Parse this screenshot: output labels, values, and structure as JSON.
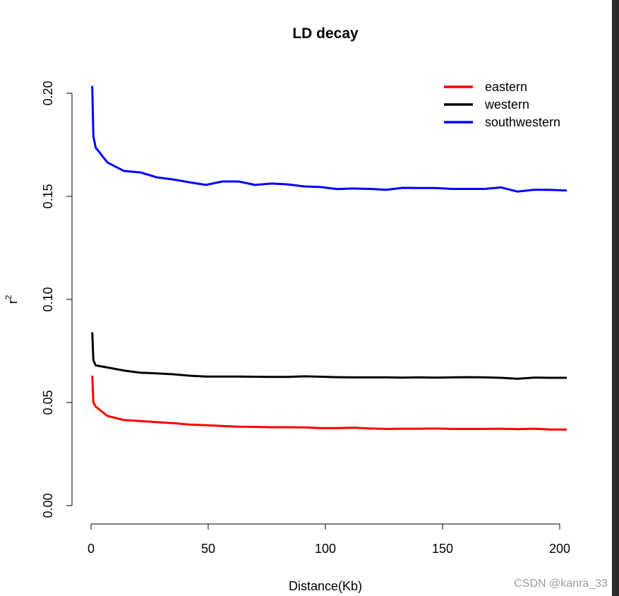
{
  "chart_data": {
    "type": "line",
    "title": "LD decay",
    "xlabel": "Distance(Kb)",
    "ylabel": "r",
    "ylabel_superscript": "2",
    "xlim": [
      0,
      203
    ],
    "ylim": [
      0,
      0.2
    ],
    "xticks": [
      0,
      50,
      100,
      150,
      200
    ],
    "xtick_labels": [
      "0",
      "50",
      "100",
      "150",
      "200"
    ],
    "yticks": [
      0,
      0.05,
      0.1,
      0.15,
      0.2
    ],
    "ytick_labels": [
      "0.00",
      "0.05",
      "0.10",
      "0.15",
      "0.20"
    ],
    "grid": false,
    "legend_position": "top-right",
    "x": [
      0.5,
      1,
      2,
      7,
      14,
      21,
      28,
      35,
      42,
      49,
      56,
      63,
      70,
      77,
      84,
      91,
      98,
      105,
      112,
      119,
      126,
      133,
      140,
      147,
      154,
      161,
      168,
      175,
      182,
      189,
      196,
      203
    ],
    "series": [
      {
        "name": "eastern",
        "color": "#ff0000",
        "values": [
          0.063,
          0.05,
          0.048,
          0.0435,
          0.0415,
          0.041,
          0.0405,
          0.04,
          0.0393,
          0.039,
          0.0386,
          0.0383,
          0.0382,
          0.038,
          0.038,
          0.0379,
          0.0376,
          0.0376,
          0.0378,
          0.0374,
          0.0372,
          0.0373,
          0.0373,
          0.0374,
          0.0372,
          0.0372,
          0.0372,
          0.0373,
          0.0371,
          0.0373,
          0.0369,
          0.0369
        ]
      },
      {
        "name": "western",
        "color": "#000000",
        "values": [
          0.084,
          0.0705,
          0.068,
          0.067,
          0.0655,
          0.0645,
          0.0641,
          0.0637,
          0.063,
          0.0626,
          0.0626,
          0.0626,
          0.0625,
          0.0624,
          0.0624,
          0.0627,
          0.0625,
          0.0623,
          0.0622,
          0.0622,
          0.0622,
          0.0621,
          0.0622,
          0.0621,
          0.0622,
          0.0623,
          0.0622,
          0.062,
          0.0615,
          0.0621,
          0.062,
          0.062
        ]
      },
      {
        "name": "southwestern",
        "color": "#0000ff",
        "values": [
          0.2035,
          0.179,
          0.1736,
          0.1664,
          0.1623,
          0.1616,
          0.1592,
          0.1582,
          0.1568,
          0.1555,
          0.1572,
          0.1572,
          0.1555,
          0.1562,
          0.1558,
          0.1548,
          0.1545,
          0.1535,
          0.1538,
          0.1536,
          0.1532,
          0.1541,
          0.154,
          0.154,
          0.1536,
          0.1536,
          0.1536,
          0.1543,
          0.1523,
          0.1532,
          0.1531,
          0.1528
        ]
      }
    ]
  },
  "watermark": "CSDN @kanra_33"
}
